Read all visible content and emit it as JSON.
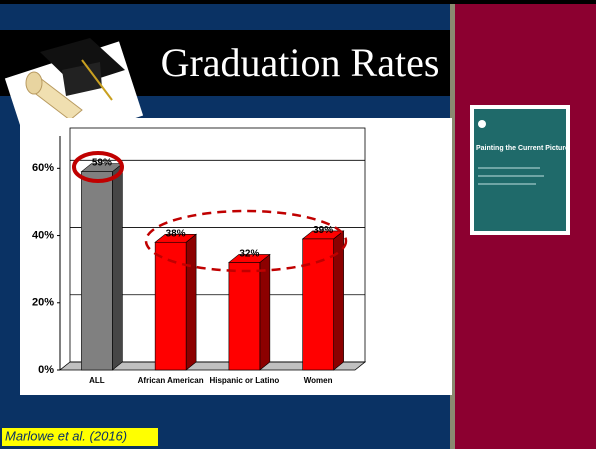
{
  "slide": {
    "title": "Graduation Rates",
    "citation": "Marlowe et al. (2016)",
    "book_title": "Painting the Current Picture"
  },
  "chart_data": {
    "type": "bar",
    "categories": [
      "ALL",
      "African American",
      "Hispanic or Latino",
      "Women"
    ],
    "values": [
      59,
      38,
      32,
      39
    ],
    "value_labels": [
      "59%",
      "38%",
      "32%",
      "39%"
    ],
    "colors": [
      "#808080",
      "#ff0000",
      "#ff0000",
      "#ff0000"
    ],
    "ylim": [
      0,
      72
    ],
    "yticks": [
      {
        "value": 0,
        "label": "0%"
      },
      {
        "value": 20,
        "label": "20%"
      },
      {
        "value": 40,
        "label": "40%"
      },
      {
        "value": 60,
        "label": "60%"
      }
    ],
    "grid": true
  }
}
